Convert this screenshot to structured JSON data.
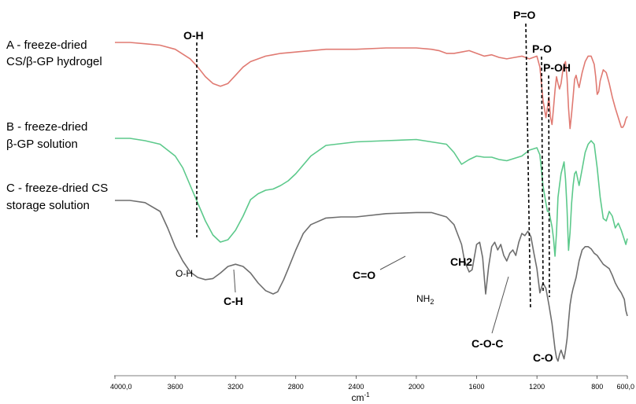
{
  "chart_data": {
    "type": "line",
    "xlabel": "cm-1",
    "xlabel_display": "cm",
    "xlabel_sup": "-1",
    "xlim": [
      4000,
      600
    ],
    "x_reversed": true,
    "yaxis_visible": false,
    "grid": false,
    "ticks": [
      "4000,0",
      "3600",
      "3200",
      "2800",
      "2400",
      "2000",
      "1600",
      "1200",
      "800",
      "600,0"
    ],
    "tick_values": [
      4000,
      3600,
      3200,
      2800,
      2400,
      2000,
      1600,
      1200,
      800,
      600
    ],
    "series": [
      {
        "name": "A - freeze-dried CS/β-GP hydrogel",
        "label_lines": [
          "A - freeze-dried",
          "CS/β-GP hydrogel"
        ],
        "color": "#e07a72",
        "x": [
          4000,
          3900,
          3800,
          3700,
          3600,
          3500,
          3450,
          3400,
          3350,
          3300,
          3250,
          3200,
          3150,
          3100,
          3050,
          3000,
          2950,
          2900,
          2800,
          2700,
          2600,
          2400,
          2200,
          2000,
          1900,
          1850,
          1800,
          1750,
          1700,
          1650,
          1600,
          1550,
          1500,
          1450,
          1400,
          1350,
          1300,
          1250,
          1200,
          1180,
          1160,
          1140,
          1120,
          1110,
          1100,
          1090,
          1080,
          1070,
          1060,
          1050,
          1040,
          1030,
          1020,
          1010,
          1000,
          990,
          980,
          970,
          960,
          950,
          940,
          930,
          920,
          900,
          880,
          860,
          840,
          820,
          810,
          800,
          790,
          780,
          760,
          740,
          720,
          700,
          680,
          660,
          640,
          630,
          620,
          610,
          600
        ],
        "y": [
          0.0,
          0.0,
          0.01,
          0.02,
          0.05,
          0.12,
          0.18,
          0.25,
          0.3,
          0.32,
          0.3,
          0.24,
          0.18,
          0.14,
          0.12,
          0.1,
          0.09,
          0.08,
          0.07,
          0.06,
          0.05,
          0.05,
          0.04,
          0.04,
          0.05,
          0.06,
          0.08,
          0.08,
          0.07,
          0.06,
          0.08,
          0.1,
          0.09,
          0.11,
          0.12,
          0.11,
          0.1,
          0.12,
          0.1,
          0.18,
          0.42,
          0.55,
          0.4,
          0.55,
          0.6,
          0.48,
          0.35,
          0.25,
          0.3,
          0.34,
          0.3,
          0.22,
          0.16,
          0.14,
          0.26,
          0.48,
          0.63,
          0.52,
          0.4,
          0.27,
          0.24,
          0.29,
          0.33,
          0.22,
          0.14,
          0.1,
          0.1,
          0.16,
          0.25,
          0.38,
          0.36,
          0.28,
          0.2,
          0.22,
          0.3,
          0.4,
          0.48,
          0.55,
          0.62,
          0.62,
          0.6,
          0.56,
          0.54
        ]
      },
      {
        "name": "B - freeze-dried β-GP solution",
        "label_lines": [
          "B - freeze-dried",
          "β-GP solution"
        ],
        "color": "#5cc98b",
        "x": [
          4000,
          3900,
          3800,
          3700,
          3600,
          3550,
          3500,
          3450,
          3400,
          3350,
          3300,
          3250,
          3200,
          3150,
          3100,
          3050,
          3000,
          2950,
          2900,
          2850,
          2800,
          2700,
          2600,
          2400,
          2200,
          2000,
          1800,
          1750,
          1700,
          1650,
          1600,
          1550,
          1500,
          1450,
          1400,
          1350,
          1300,
          1250,
          1200,
          1180,
          1160,
          1140,
          1130,
          1120,
          1100,
          1090,
          1080,
          1070,
          1060,
          1050,
          1040,
          1030,
          1020,
          1010,
          1000,
          990,
          980,
          970,
          960,
          950,
          940,
          920,
          900,
          880,
          860,
          840,
          820,
          800,
          780,
          760,
          740,
          720,
          700,
          680,
          660,
          640,
          620,
          610,
          600
        ],
        "y": [
          0.0,
          0.0,
          0.02,
          0.05,
          0.15,
          0.25,
          0.4,
          0.55,
          0.7,
          0.82,
          0.88,
          0.86,
          0.78,
          0.66,
          0.52,
          0.47,
          0.44,
          0.43,
          0.4,
          0.36,
          0.3,
          0.15,
          0.06,
          0.03,
          0.02,
          0.01,
          0.05,
          0.12,
          0.22,
          0.18,
          0.15,
          0.16,
          0.16,
          0.18,
          0.19,
          0.17,
          0.15,
          0.1,
          0.08,
          0.14,
          0.4,
          0.55,
          0.62,
          0.62,
          0.75,
          0.85,
          1.0,
          0.8,
          0.5,
          0.4,
          0.3,
          0.25,
          0.2,
          0.35,
          0.6,
          0.95,
          0.8,
          0.55,
          0.4,
          0.3,
          0.28,
          0.4,
          0.26,
          0.12,
          0.05,
          0.02,
          0.05,
          0.25,
          0.5,
          0.68,
          0.7,
          0.62,
          0.66,
          0.76,
          0.72,
          0.78,
          0.86,
          0.9,
          0.85
        ]
      },
      {
        "name": "C - freeze-dried CS storage solution",
        "label_lines": [
          "C - freeze-dried CS",
          "storage solution"
        ],
        "color": "#6e6e6e",
        "x": [
          4000,
          3900,
          3800,
          3700,
          3650,
          3600,
          3550,
          3500,
          3450,
          3400,
          3350,
          3300,
          3250,
          3200,
          3150,
          3100,
          3050,
          3000,
          2950,
          2920,
          2880,
          2850,
          2800,
          2750,
          2700,
          2600,
          2500,
          2400,
          2200,
          2000,
          1900,
          1800,
          1750,
          1700,
          1680,
          1650,
          1630,
          1600,
          1580,
          1560,
          1540,
          1520,
          1500,
          1480,
          1460,
          1440,
          1420,
          1400,
          1380,
          1360,
          1340,
          1320,
          1300,
          1280,
          1260,
          1240,
          1220,
          1200,
          1180,
          1160,
          1140,
          1120,
          1100,
          1080,
          1070,
          1060,
          1050,
          1040,
          1030,
          1020,
          1010,
          1000,
          990,
          980,
          970,
          960,
          940,
          920,
          900,
          880,
          860,
          840,
          820,
          800,
          780,
          760,
          740,
          720,
          700,
          680,
          660,
          640,
          620,
          610,
          600
        ],
        "y": [
          0.0,
          0.0,
          0.02,
          0.1,
          0.25,
          0.42,
          0.55,
          0.65,
          0.7,
          0.72,
          0.71,
          0.66,
          0.6,
          0.58,
          0.6,
          0.66,
          0.75,
          0.82,
          0.85,
          0.83,
          0.72,
          0.62,
          0.45,
          0.3,
          0.22,
          0.16,
          0.15,
          0.15,
          0.12,
          0.11,
          0.11,
          0.15,
          0.22,
          0.4,
          0.55,
          0.65,
          0.63,
          0.4,
          0.38,
          0.52,
          0.85,
          0.6,
          0.42,
          0.38,
          0.45,
          0.4,
          0.5,
          0.55,
          0.48,
          0.45,
          0.5,
          0.38,
          0.3,
          0.32,
          0.28,
          0.33,
          0.48,
          0.62,
          0.84,
          0.75,
          0.8,
          0.95,
          1.12,
          1.35,
          1.43,
          1.46,
          1.4,
          1.36,
          1.4,
          1.44,
          1.36,
          1.26,
          1.1,
          0.95,
          0.86,
          0.8,
          0.7,
          0.55,
          0.45,
          0.42,
          0.42,
          0.44,
          0.48,
          0.5,
          0.54,
          0.58,
          0.6,
          0.62,
          0.68,
          0.75,
          0.8,
          0.84,
          0.9,
          1.0,
          1.05
        ]
      }
    ],
    "annotations": {
      "top_oh": "O-H",
      "po_double": "P=O",
      "po": "P-O",
      "poh": "P-OH",
      "oh_bottom": "O-H",
      "ch": "C-H",
      "co_double": "C=O",
      "nh2": "NH2",
      "nh2_base": "NH",
      "nh2_sub": "2",
      "ch2": "CH2",
      "coc": "C-O-C",
      "co": "C-O"
    }
  }
}
